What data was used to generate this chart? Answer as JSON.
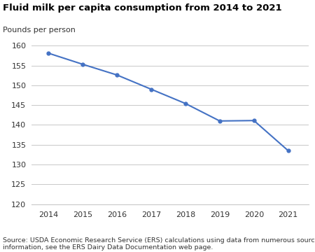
{
  "title": "Fluid milk per capita consumption from 2014 to 2021",
  "ylabel": "Pounds per person",
  "source": "Source: USDA Economic Research Service (ERS) calculations using data from numerous sources. For more\ninformation, see the ERS Dairy Data Documentation web page.",
  "years": [
    2014,
    2015,
    2016,
    2017,
    2018,
    2019,
    2020,
    2021
  ],
  "values": [
    158.1,
    155.3,
    152.6,
    149.0,
    145.4,
    141.0,
    141.1,
    133.5
  ],
  "ylim": [
    120,
    162
  ],
  "yticks": [
    120,
    125,
    130,
    135,
    140,
    145,
    150,
    155,
    160
  ],
  "xlim": [
    2013.5,
    2021.6
  ],
  "line_color": "#4472c4",
  "marker": "o",
  "marker_size": 3.5,
  "bg_color": "#ffffff",
  "grid_color": "#c8c8c8",
  "title_fontsize": 9.5,
  "label_fontsize": 8,
  "tick_fontsize": 8,
  "source_fontsize": 6.8
}
